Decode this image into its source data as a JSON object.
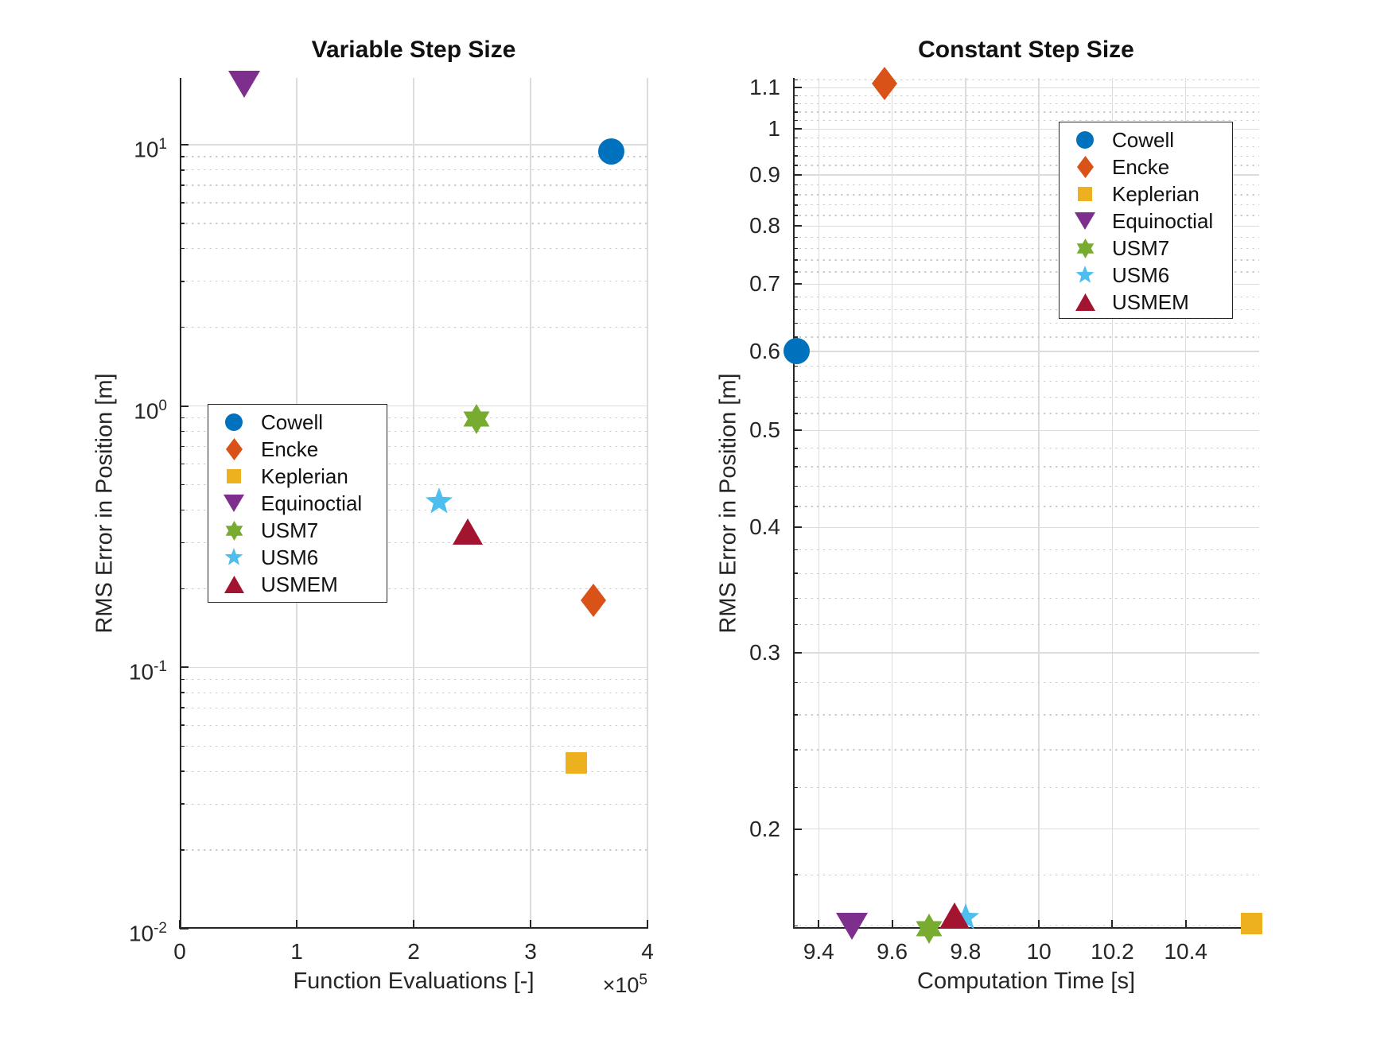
{
  "figure": {
    "background": "#FFFFFF"
  },
  "chart_data": [
    {
      "type": "scatter",
      "title": "Variable Step Size",
      "xlabel": "Function Evaluations [-]",
      "x_axis_offset": {
        "text": "×10",
        "exponent": "5"
      },
      "ylabel": "RMS Error in Position [m]",
      "xlim": [
        0,
        4
      ],
      "xticks": [
        0,
        1,
        2,
        3,
        4
      ],
      "yscale": "log",
      "ylim": [
        0.01,
        18
      ],
      "ytick_exponents": [
        -2,
        -1,
        0,
        1
      ],
      "grid": true,
      "minor_grid": true,
      "legend_location": "inside middle-left",
      "series": [
        {
          "name": "Cowell",
          "marker": "circle",
          "color": "#0072BD",
          "points": [
            [
              3.69,
              9.4
            ]
          ]
        },
        {
          "name": "Encke",
          "marker": "diamond",
          "color": "#D95319",
          "points": [
            [
              3.54,
              0.18
            ]
          ]
        },
        {
          "name": "Keplerian",
          "marker": "square",
          "color": "#EDB120",
          "points": [
            [
              3.39,
              0.043
            ]
          ]
        },
        {
          "name": "Equinoctial",
          "marker": "triangle-down",
          "color": "#7E2F8E",
          "points": [
            [
              0.55,
              17
            ]
          ]
        },
        {
          "name": "USM7",
          "marker": "hexagram",
          "color": "#77AC30",
          "points": [
            [
              2.54,
              0.89
            ]
          ]
        },
        {
          "name": "USM6",
          "marker": "star",
          "color": "#4DBEEE",
          "points": [
            [
              2.22,
              0.43
            ]
          ]
        },
        {
          "name": "USMEM",
          "marker": "triangle-up",
          "color": "#A2142F",
          "points": [
            [
              2.46,
              0.33
            ]
          ]
        }
      ]
    },
    {
      "type": "scatter",
      "title": "Constant Step Size",
      "xlabel": "Computation Time [s]",
      "ylabel": "RMS Error in Position [m]",
      "xlim": [
        9.33,
        10.6
      ],
      "xticks": [
        9.4,
        9.6,
        9.8,
        10,
        10.2,
        10.4
      ],
      "yscale": "log",
      "ylim": [
        0.159,
        1.125
      ],
      "yticks": [
        0.2,
        0.3,
        0.4,
        0.5,
        0.6,
        0.7,
        0.8,
        0.9,
        1,
        1.1
      ],
      "minor_step": 0.02,
      "grid": true,
      "minor_grid": true,
      "legend_location": "inside upper-right",
      "series": [
        {
          "name": "Cowell",
          "marker": "circle",
          "color": "#0072BD",
          "points": [
            [
              9.34,
              0.6
            ]
          ]
        },
        {
          "name": "Encke",
          "marker": "diamond",
          "color": "#D95319",
          "points": [
            [
              9.58,
              1.11
            ]
          ]
        },
        {
          "name": "Keplerian",
          "marker": "square",
          "color": "#EDB120",
          "points": [
            [
              10.58,
              0.161
            ]
          ]
        },
        {
          "name": "Equinoctial",
          "marker": "triangle-down",
          "color": "#7E2F8E",
          "points": [
            [
              9.49,
              0.16
            ]
          ]
        },
        {
          "name": "USM7",
          "marker": "hexagram",
          "color": "#77AC30",
          "points": [
            [
              9.7,
              0.159
            ]
          ]
        },
        {
          "name": "USM6",
          "marker": "star",
          "color": "#4DBEEE",
          "points": [
            [
              9.8,
              0.163
            ]
          ]
        },
        {
          "name": "USMEM",
          "marker": "triangle-up",
          "color": "#A2142F",
          "points": [
            [
              9.77,
              0.164
            ]
          ]
        }
      ]
    }
  ]
}
